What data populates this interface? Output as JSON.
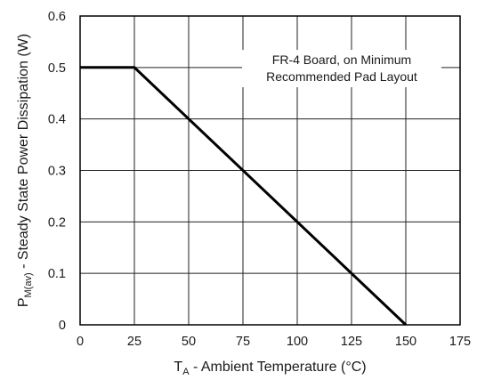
{
  "chart_data": {
    "type": "line",
    "xlabel": {
      "main": "T",
      "sub": "A",
      "rest": " - Ambient Temperature (°C)"
    },
    "ylabel": {
      "main": "P",
      "sub": "M(av)",
      "rest": " - Steady State Power Dissipation (W)"
    },
    "xlim": [
      0,
      175
    ],
    "ylim": [
      0,
      0.6
    ],
    "xticks": [
      0,
      25,
      50,
      75,
      100,
      125,
      150,
      175
    ],
    "yticks": [
      0,
      0.1,
      0.2,
      0.3,
      0.4,
      0.5,
      0.6
    ],
    "xtick_labels": [
      "0",
      "25",
      "50",
      "75",
      "100",
      "125",
      "150",
      "175"
    ],
    "ytick_labels": [
      "0",
      "0.1",
      "0.2",
      "0.3",
      "0.4",
      "0.5",
      "0.6"
    ],
    "grid": true,
    "series": [
      {
        "x": [
          0,
          25,
          150
        ],
        "y": [
          0.5,
          0.5,
          0
        ],
        "color": "#000000"
      }
    ],
    "annotation": [
      "FR-4 Board, on Minimum",
      "Recommended Pad Layout"
    ]
  }
}
